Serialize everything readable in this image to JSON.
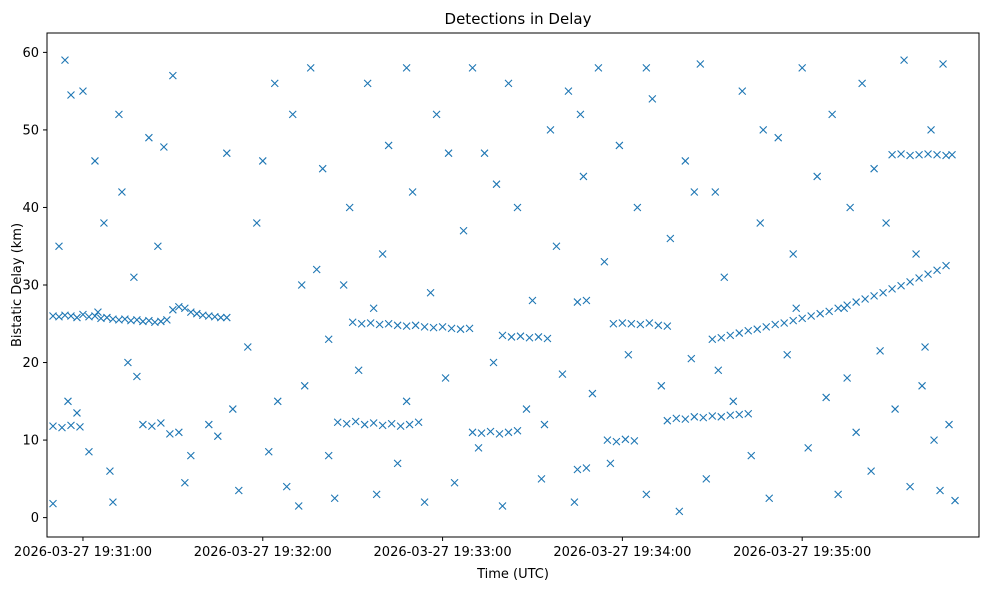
{
  "chart_data": {
    "type": "scatter",
    "title": "Detections in Delay",
    "xlabel": "Time (UTC)",
    "ylabel": "Bistatic Delay (km)",
    "x_start": "2026-03-27 19:30:50",
    "xlim": [
      "2026-03-27 19:30:48",
      "2026-03-27 19:35:59"
    ],
    "ylim": [
      -2.5,
      62.5
    ],
    "x_ticks": [
      "2026-03-27 19:31:00",
      "2026-03-27 19:32:00",
      "2026-03-27 19:33:00",
      "2026-03-27 19:34:00",
      "2026-03-27 19:35:00"
    ],
    "y_ticks": [
      "0",
      "10",
      "20",
      "30",
      "40",
      "50",
      "60"
    ],
    "marker": "x",
    "grid": false,
    "color": "#1f77b4",
    "series": [
      {
        "values": [
          [
            0,
            26.0
          ],
          [
            2,
            25.9
          ],
          [
            4,
            26.1
          ],
          [
            6,
            26.0
          ],
          [
            8,
            25.8
          ],
          [
            10,
            26.2
          ],
          [
            12,
            25.9
          ],
          [
            14,
            26.0
          ],
          [
            16,
            25.7
          ],
          [
            18,
            25.8
          ],
          [
            20,
            25.6
          ],
          [
            22,
            25.5
          ],
          [
            24,
            25.6
          ],
          [
            26,
            25.4
          ],
          [
            28,
            25.5
          ],
          [
            30,
            25.3
          ],
          [
            32,
            25.4
          ],
          [
            34,
            25.2
          ],
          [
            36,
            25.3
          ],
          [
            38,
            25.5
          ],
          [
            40,
            26.8
          ],
          [
            42,
            27.2
          ],
          [
            44,
            27.0
          ],
          [
            46,
            26.5
          ],
          [
            48,
            26.3
          ],
          [
            50,
            26.1
          ],
          [
            52,
            26.0
          ],
          [
            54,
            25.9
          ],
          [
            56,
            25.8
          ],
          [
            58,
            25.8
          ],
          [
            100,
            25.2
          ],
          [
            103,
            25.0
          ],
          [
            106,
            25.1
          ],
          [
            109,
            24.9
          ],
          [
            112,
            25.0
          ],
          [
            115,
            24.8
          ],
          [
            118,
            24.7
          ],
          [
            121,
            24.8
          ],
          [
            124,
            24.6
          ],
          [
            127,
            24.5
          ],
          [
            130,
            24.6
          ],
          [
            133,
            24.4
          ],
          [
            136,
            24.3
          ],
          [
            139,
            24.4
          ],
          [
            150,
            23.5
          ],
          [
            153,
            23.3
          ],
          [
            156,
            23.4
          ],
          [
            159,
            23.2
          ],
          [
            162,
            23.3
          ],
          [
            165,
            23.1
          ],
          [
            175,
            27.8
          ],
          [
            178,
            28.0
          ],
          [
            190,
            25.1
          ],
          [
            193,
            25.0
          ],
          [
            196,
            24.9
          ],
          [
            199,
            25.1
          ],
          [
            202,
            24.8
          ],
          [
            205,
            24.7
          ],
          [
            220,
            23.0
          ],
          [
            223,
            23.2
          ],
          [
            226,
            23.5
          ],
          [
            229,
            23.8
          ],
          [
            232,
            24.1
          ],
          [
            235,
            24.3
          ],
          [
            238,
            24.6
          ],
          [
            241,
            24.9
          ],
          [
            244,
            25.1
          ],
          [
            247,
            25.4
          ],
          [
            250,
            25.7
          ],
          [
            253,
            26.0
          ],
          [
            256,
            26.3
          ],
          [
            259,
            26.6
          ],
          [
            262,
            27.0
          ],
          [
            265,
            27.4
          ],
          [
            268,
            27.8
          ],
          [
            271,
            28.2
          ],
          [
            274,
            28.6
          ],
          [
            277,
            29.0
          ],
          [
            280,
            29.5
          ],
          [
            283,
            29.9
          ],
          [
            286,
            30.4
          ],
          [
            289,
            30.9
          ],
          [
            292,
            31.4
          ],
          [
            295,
            31.9
          ],
          [
            298,
            32.5
          ],
          [
            0,
            11.8
          ],
          [
            3,
            11.6
          ],
          [
            6,
            11.9
          ],
          [
            9,
            11.7
          ],
          [
            30,
            12.0
          ],
          [
            33,
            11.8
          ],
          [
            36,
            12.2
          ],
          [
            39,
            10.8
          ],
          [
            42,
            11.0
          ],
          [
            95,
            12.3
          ],
          [
            98,
            12.1
          ],
          [
            101,
            12.4
          ],
          [
            104,
            12.0
          ],
          [
            107,
            12.2
          ],
          [
            110,
            11.9
          ],
          [
            113,
            12.1
          ],
          [
            116,
            11.8
          ],
          [
            119,
            12.0
          ],
          [
            122,
            12.3
          ],
          [
            140,
            11.0
          ],
          [
            143,
            10.9
          ],
          [
            146,
            11.1
          ],
          [
            149,
            10.8
          ],
          [
            152,
            11.0
          ],
          [
            155,
            11.2
          ],
          [
            175,
            6.2
          ],
          [
            178,
            6.4
          ],
          [
            185,
            10.0
          ],
          [
            188,
            9.8
          ],
          [
            191,
            10.1
          ],
          [
            194,
            9.9
          ],
          [
            205,
            12.5
          ],
          [
            208,
            12.8
          ],
          [
            211,
            12.7
          ],
          [
            214,
            13.0
          ],
          [
            217,
            12.9
          ],
          [
            220,
            13.1
          ],
          [
            223,
            13.0
          ],
          [
            226,
            13.2
          ],
          [
            229,
            13.3
          ],
          [
            232,
            13.4
          ],
          [
            280,
            46.8
          ],
          [
            283,
            46.9
          ],
          [
            286,
            46.7
          ],
          [
            289,
            46.8
          ],
          [
            292,
            46.9
          ],
          [
            295,
            46.8
          ],
          [
            298,
            46.7
          ],
          [
            300,
            46.8
          ],
          [
            0,
            1.8
          ],
          [
            8,
            13.5
          ],
          [
            12,
            8.5
          ],
          [
            20,
            2.0
          ],
          [
            25,
            20.0
          ],
          [
            28,
            18.2
          ],
          [
            35,
            35.0
          ],
          [
            37,
            47.8
          ],
          [
            44,
            4.5
          ],
          [
            46,
            8.0
          ],
          [
            52,
            12.0
          ],
          [
            55,
            10.5
          ],
          [
            60,
            14.0
          ],
          [
            62,
            3.5
          ],
          [
            65,
            22.0
          ],
          [
            68,
            38.0
          ],
          [
            70,
            46.0
          ],
          [
            72,
            8.5
          ],
          [
            75,
            15.0
          ],
          [
            78,
            4.0
          ],
          [
            80,
            52.0
          ],
          [
            82,
            1.5
          ],
          [
            84,
            17.0
          ],
          [
            86,
            58.0
          ],
          [
            88,
            32.0
          ],
          [
            90,
            45.0
          ],
          [
            92,
            8.0
          ],
          [
            94,
            2.5
          ],
          [
            97,
            30.0
          ],
          [
            99,
            40.0
          ],
          [
            102,
            19.0
          ],
          [
            105,
            56.0
          ],
          [
            108,
            3.0
          ],
          [
            110,
            34.0
          ],
          [
            112,
            48.0
          ],
          [
            115,
            7.0
          ],
          [
            118,
            15.0
          ],
          [
            120,
            42.0
          ],
          [
            124,
            2.0
          ],
          [
            126,
            29.0
          ],
          [
            128,
            52.0
          ],
          [
            131,
            18.0
          ],
          [
            134,
            4.5
          ],
          [
            137,
            37.0
          ],
          [
            140,
            58.0
          ],
          [
            142,
            9.0
          ],
          [
            144,
            47.0
          ],
          [
            147,
            20.0
          ],
          [
            150,
            1.5
          ],
          [
            152,
            56.0
          ],
          [
            155,
            40.0
          ],
          [
            158,
            14.0
          ],
          [
            160,
            28.0
          ],
          [
            163,
            5.0
          ],
          [
            166,
            50.0
          ],
          [
            168,
            35.0
          ],
          [
            170,
            18.5
          ],
          [
            172,
            55.0
          ],
          [
            174,
            2.0
          ],
          [
            177,
            44.0
          ],
          [
            180,
            16.0
          ],
          [
            182,
            58.0
          ],
          [
            184,
            33.0
          ],
          [
            186,
            7.0
          ],
          [
            189,
            48.0
          ],
          [
            192,
            21.0
          ],
          [
            195,
            40.0
          ],
          [
            198,
            3.0
          ],
          [
            200,
            54.0
          ],
          [
            203,
            17.0
          ],
          [
            206,
            36.0
          ],
          [
            209,
            0.8
          ],
          [
            211,
            46.0
          ],
          [
            213,
            20.5
          ],
          [
            216,
            58.5
          ],
          [
            218,
            5.0
          ],
          [
            221,
            42.0
          ],
          [
            224,
            31.0
          ],
          [
            227,
            15.0
          ],
          [
            230,
            55.0
          ],
          [
            233,
            8.0
          ],
          [
            236,
            38.0
          ],
          [
            239,
            2.5
          ],
          [
            242,
            49.0
          ],
          [
            245,
            21.0
          ],
          [
            247,
            34.0
          ],
          [
            250,
            58.0
          ],
          [
            252,
            9.0
          ],
          [
            255,
            44.0
          ],
          [
            258,
            15.5
          ],
          [
            260,
            52.0
          ],
          [
            262,
            3.0
          ],
          [
            264,
            27.0
          ],
          [
            266,
            40.0
          ],
          [
            268,
            11.0
          ],
          [
            270,
            56.0
          ],
          [
            273,
            6.0
          ],
          [
            276,
            21.5
          ],
          [
            278,
            38.0
          ],
          [
            281,
            14.0
          ],
          [
            284,
            59.0
          ],
          [
            286,
            4.0
          ],
          [
            288,
            34.0
          ],
          [
            290,
            17.0
          ],
          [
            293,
            50.0
          ],
          [
            296,
            3.5
          ],
          [
            299,
            12.0
          ],
          [
            301,
            2.2
          ],
          [
            297,
            58.5
          ],
          [
            294,
            10.0
          ],
          [
            291,
            22.0
          ],
          [
            274,
            45.0
          ],
          [
            265,
            18.0
          ],
          [
            248,
            27.0
          ],
          [
            237,
            50.0
          ],
          [
            222,
            19.0
          ],
          [
            214,
            42.0
          ],
          [
            198,
            58.0
          ],
          [
            187,
            25.0
          ],
          [
            176,
            52.0
          ],
          [
            164,
            12.0
          ],
          [
            148,
            43.0
          ],
          [
            132,
            47.0
          ],
          [
            118,
            58.0
          ],
          [
            107,
            27.0
          ],
          [
            92,
            23.0
          ],
          [
            83,
            30.0
          ],
          [
            74,
            56.0
          ],
          [
            58,
            47.0
          ],
          [
            40,
            57.0
          ],
          [
            32,
            49.0
          ],
          [
            22,
            52.0
          ],
          [
            17,
            38.0
          ],
          [
            14,
            46.0
          ],
          [
            4,
            59.0
          ],
          [
            6,
            54.5
          ],
          [
            10,
            55.0
          ],
          [
            2,
            35.0
          ],
          [
            5,
            15.0
          ],
          [
            15,
            26.5
          ],
          [
            19,
            6.0
          ],
          [
            23,
            42.0
          ],
          [
            27,
            31.0
          ]
        ]
      }
    ]
  }
}
